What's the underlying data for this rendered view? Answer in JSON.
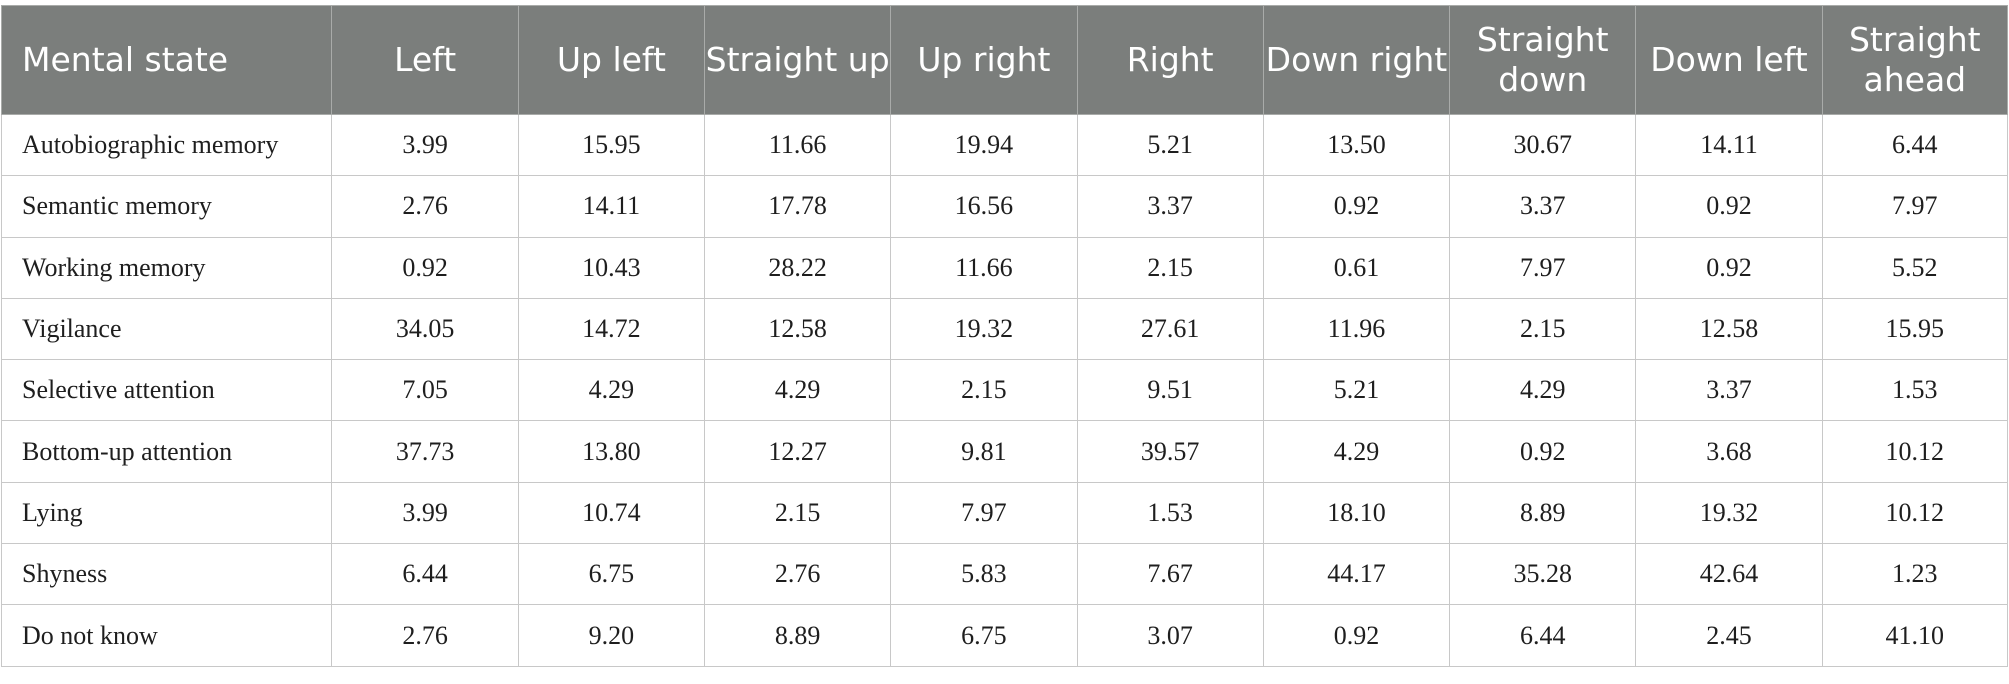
{
  "table": {
    "headers": [
      "Mental state",
      "Left",
      "Up left",
      "Straight up",
      "Up right",
      "Right",
      "Down right",
      "Straight down",
      "Down left",
      "Straight ahead"
    ],
    "rows": [
      [
        "Autobiographic memory",
        "3.99",
        "15.95",
        "11.66",
        "19.94",
        "5.21",
        "13.50",
        "30.67",
        "14.11",
        "6.44"
      ],
      [
        "Semantic memory",
        "2.76",
        "14.11",
        "17.78",
        "16.56",
        "3.37",
        "0.92",
        "3.37",
        "0.92",
        "7.97"
      ],
      [
        "Working memory",
        "0.92",
        "10.43",
        "28.22",
        "11.66",
        "2.15",
        "0.61",
        "7.97",
        "0.92",
        "5.52"
      ],
      [
        "Vigilance",
        "34.05",
        "14.72",
        "12.58",
        "19.32",
        "27.61",
        "11.96",
        "2.15",
        "12.58",
        "15.95"
      ],
      [
        "Selective attention",
        "7.05",
        "4.29",
        "4.29",
        "2.15",
        "9.51",
        "5.21",
        "4.29",
        "3.37",
        "1.53"
      ],
      [
        "Bottom-up attention",
        "37.73",
        "13.80",
        "12.27",
        "9.81",
        "39.57",
        "4.29",
        "0.92",
        "3.68",
        "10.12"
      ],
      [
        "Lying",
        "3.99",
        "10.74",
        "2.15",
        "7.97",
        "1.53",
        "18.10",
        "8.89",
        "19.32",
        "10.12"
      ],
      [
        "Shyness",
        "6.44",
        "6.75",
        "2.76",
        "5.83",
        "7.67",
        "44.17",
        "35.28",
        "42.64",
        "1.23"
      ],
      [
        "Do not know",
        "2.76",
        "9.20",
        "8.89",
        "6.75",
        "3.07",
        "0.92",
        "6.44",
        "2.45",
        "41.10"
      ]
    ]
  }
}
